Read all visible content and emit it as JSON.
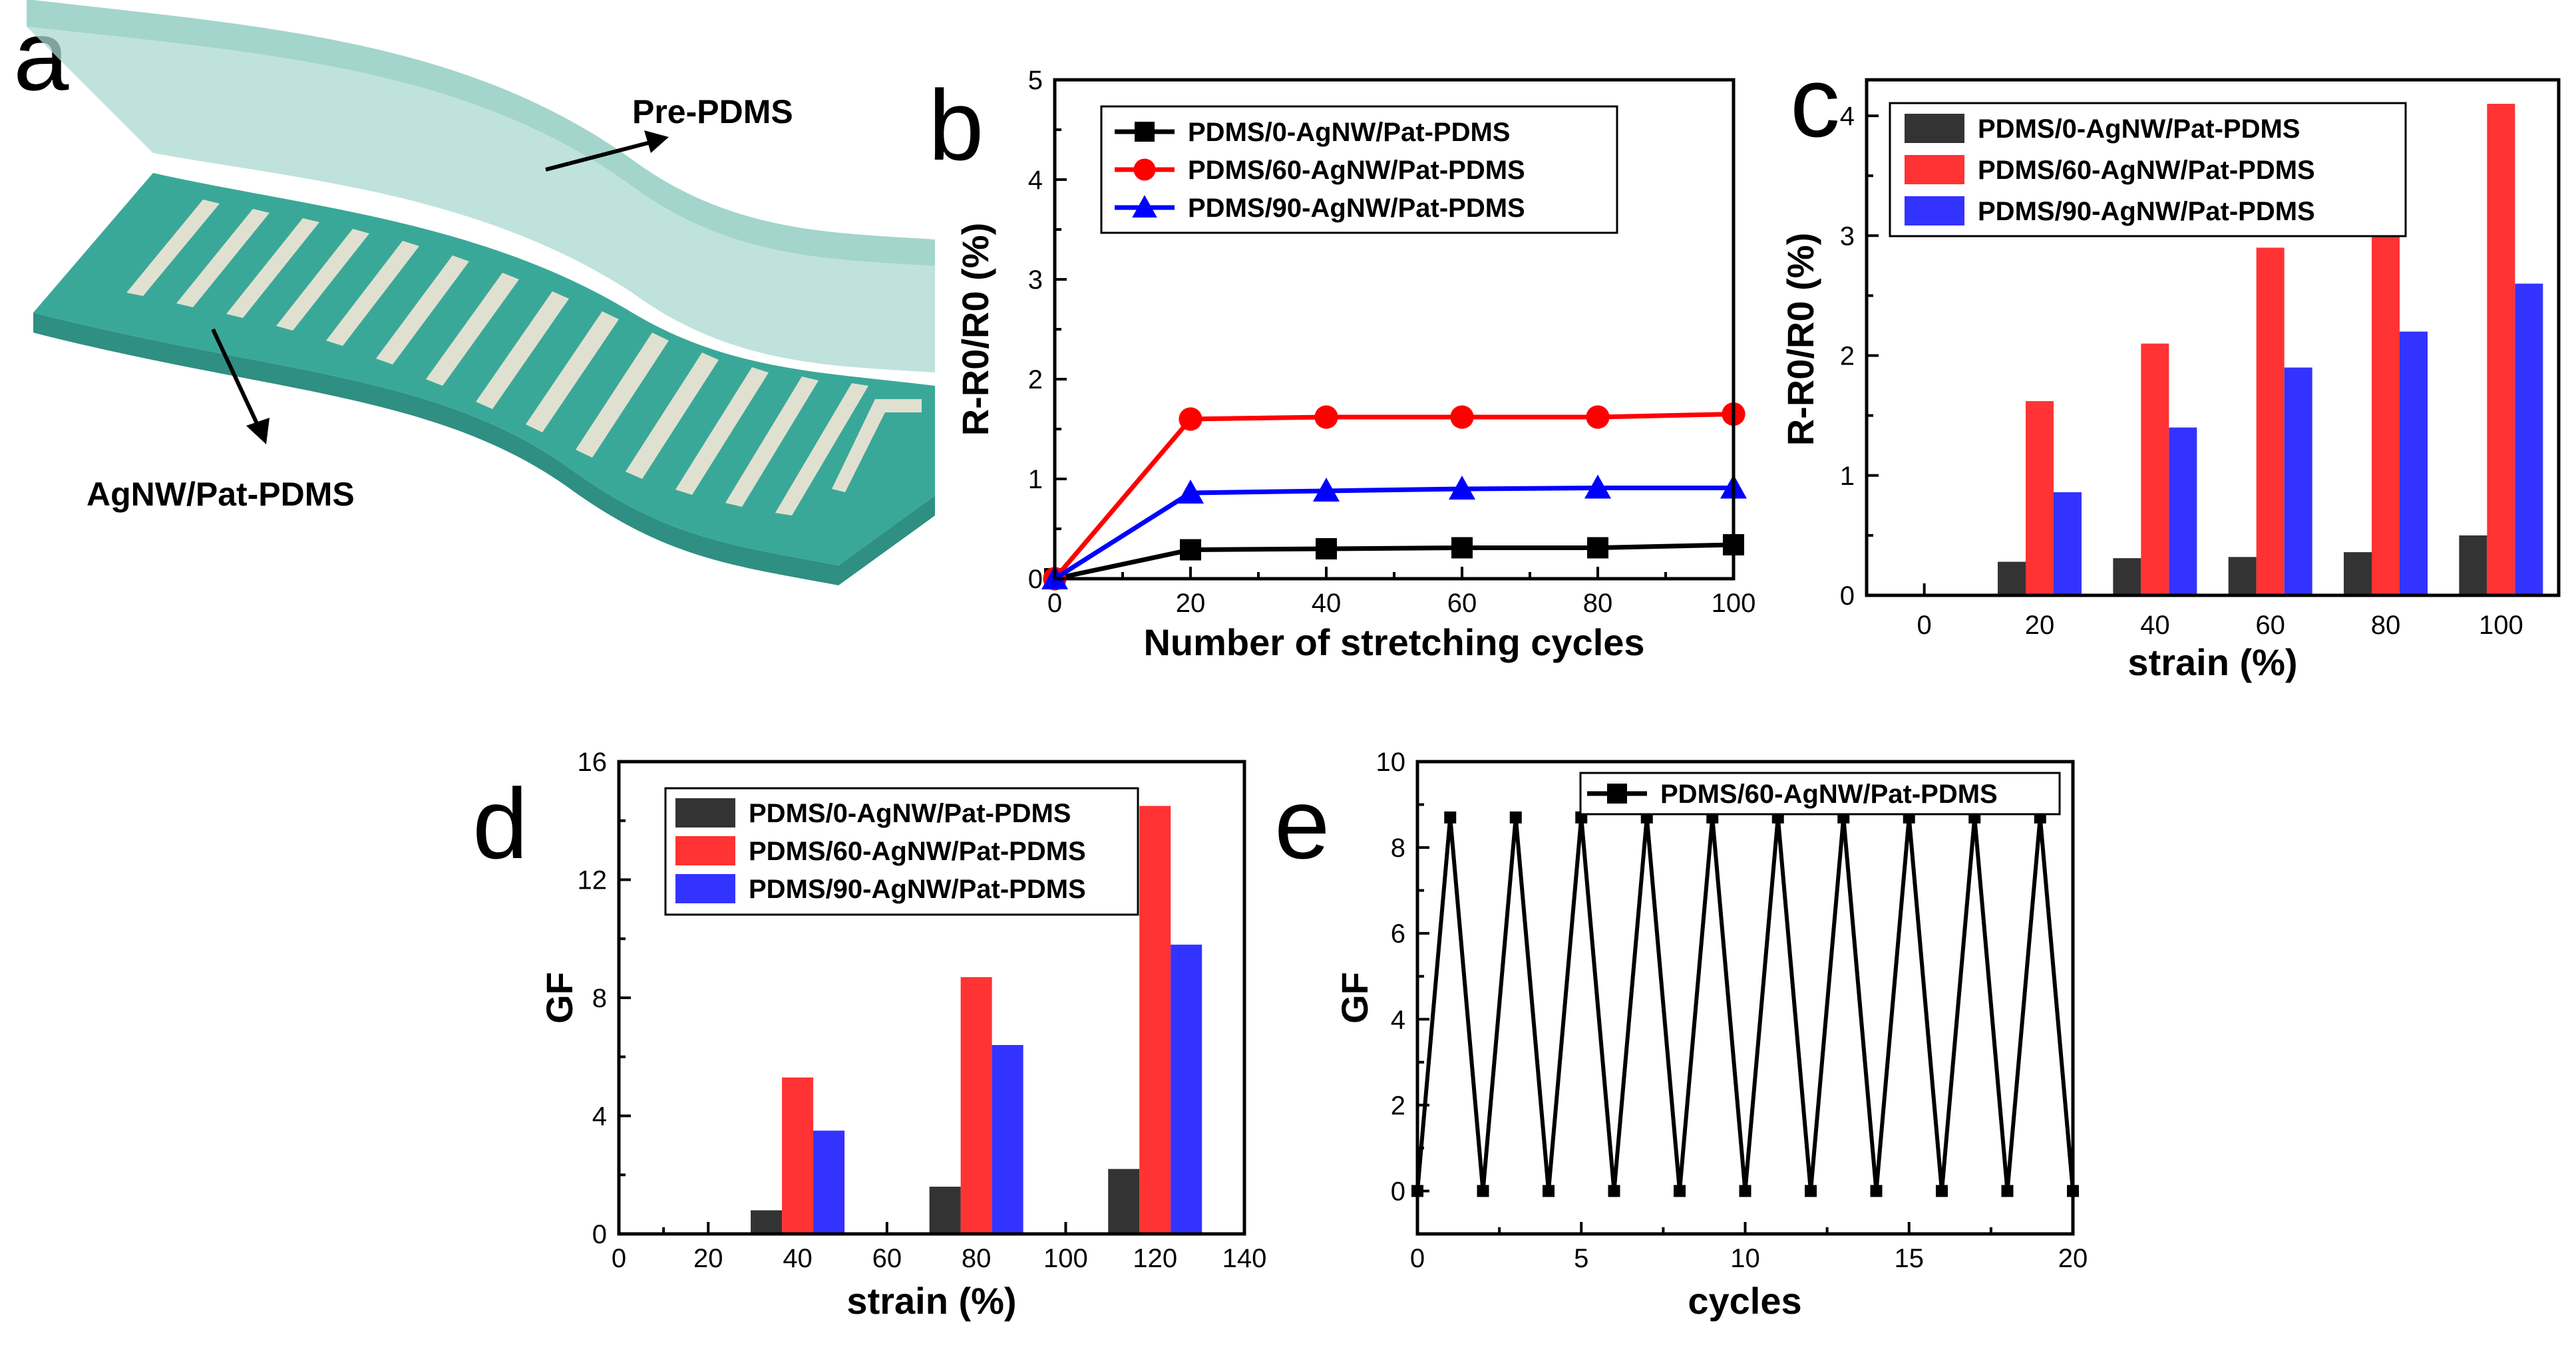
{
  "panel_letters": {
    "a": "a",
    "b": "b",
    "c": "c",
    "d": "d",
    "e": "e"
  },
  "schematic": {
    "top_layer_label": "Pre-PDMS",
    "bottom_layer_label": "AgNW/Pat-PDMS",
    "colors": {
      "top_layer": "#a9d8d0",
      "bottom_layer": "#3aa898",
      "stripes": "#e9e4d4"
    }
  },
  "colors": {
    "black": "#333333",
    "red": "#ff3333",
    "blue": "#3333ff",
    "line_black": "#000000",
    "line_red": "#ff0000",
    "line_blue": "#0000ff"
  },
  "chart_data": [
    {
      "id": "b",
      "type": "line",
      "xlabel": "Number of stretching cycles",
      "ylabel": "R-R0/R0 (%)",
      "xlim": [
        0,
        100
      ],
      "ylim": [
        0,
        5
      ],
      "xticks": [
        "0",
        "20",
        "40",
        "60",
        "80",
        "100"
      ],
      "yticks": [
        "0",
        "1",
        "2",
        "3",
        "4",
        "5"
      ],
      "x": [
        0,
        20,
        40,
        60,
        80,
        100
      ],
      "legend_position": "top-left",
      "series": [
        {
          "name": "PDMS/0-AgNW/Pat-PDMS",
          "marker": "square",
          "values": [
            0,
            0.29,
            0.3,
            0.31,
            0.31,
            0.34
          ]
        },
        {
          "name": "PDMS/60-AgNW/Pat-PDMS",
          "marker": "circle",
          "values": [
            0,
            1.6,
            1.62,
            1.62,
            1.62,
            1.65
          ]
        },
        {
          "name": "PDMS/90-AgNW/Pat-PDMS",
          "marker": "triangle",
          "values": [
            0,
            0.86,
            0.88,
            0.9,
            0.91,
            0.91
          ]
        }
      ]
    },
    {
      "id": "c",
      "type": "bar",
      "xlabel": "strain (%)",
      "ylabel": "R-R0/R0 (%)",
      "ylim": [
        0,
        4.3
      ],
      "categories": [
        "0",
        "20",
        "40",
        "60",
        "80",
        "100"
      ],
      "yticks": [
        "0",
        "1",
        "2",
        "3",
        "4"
      ],
      "legend_position": "top-left",
      "series": [
        {
          "name": "PDMS/0-AgNW/Pat-PDMS",
          "values": [
            0,
            0.28,
            0.31,
            0.32,
            0.36,
            0.5
          ]
        },
        {
          "name": "PDMS/60-AgNW/Pat-PDMS",
          "values": [
            0,
            1.62,
            2.1,
            2.9,
            3.2,
            4.1
          ]
        },
        {
          "name": "PDMS/90-AgNW/Pat-PDMS",
          "values": [
            0,
            0.86,
            1.4,
            1.9,
            2.2,
            2.6
          ]
        }
      ]
    },
    {
      "id": "d",
      "type": "bar",
      "xlabel": "strain (%)",
      "ylabel": "GF",
      "xlim": [
        0,
        140
      ],
      "ylim": [
        0,
        16
      ],
      "xticks": [
        "0",
        "20",
        "40",
        "60",
        "80",
        "100",
        "120",
        "140"
      ],
      "yticks": [
        "0",
        "4",
        "8",
        "12",
        "16"
      ],
      "categories": [
        "40",
        "80",
        "120"
      ],
      "legend_position": "top-left",
      "series": [
        {
          "name": "PDMS/0-AgNW/Pat-PDMS",
          "values": [
            0.8,
            1.6,
            2.2
          ]
        },
        {
          "name": "PDMS/60-AgNW/Pat-PDMS",
          "values": [
            5.3,
            8.7,
            14.5
          ]
        },
        {
          "name": "PDMS/90-AgNW/Pat-PDMS",
          "values": [
            3.5,
            6.4,
            9.8
          ]
        }
      ]
    },
    {
      "id": "e",
      "type": "line",
      "xlabel": "cycles",
      "ylabel": "GF",
      "xlim": [
        0,
        20
      ],
      "ylim": [
        -1,
        10
      ],
      "xticks": [
        "0",
        "5",
        "10",
        "15",
        "20"
      ],
      "yticks": [
        "0",
        "2",
        "4",
        "6",
        "8",
        "10"
      ],
      "legend_position": "top-right",
      "x": [
        0,
        1,
        2,
        3,
        4,
        5,
        6,
        7,
        8,
        9,
        10,
        11,
        12,
        13,
        14,
        15,
        16,
        17,
        18,
        19,
        20
      ],
      "series": [
        {
          "name": "PDMS/60-AgNW/Pat-PDMS",
          "marker": "square",
          "values": [
            0,
            8.7,
            0,
            8.7,
            0,
            8.7,
            0,
            8.7,
            0,
            8.7,
            0,
            8.7,
            0,
            8.7,
            0,
            8.7,
            0,
            8.7,
            0,
            8.7,
            0
          ]
        }
      ]
    }
  ]
}
